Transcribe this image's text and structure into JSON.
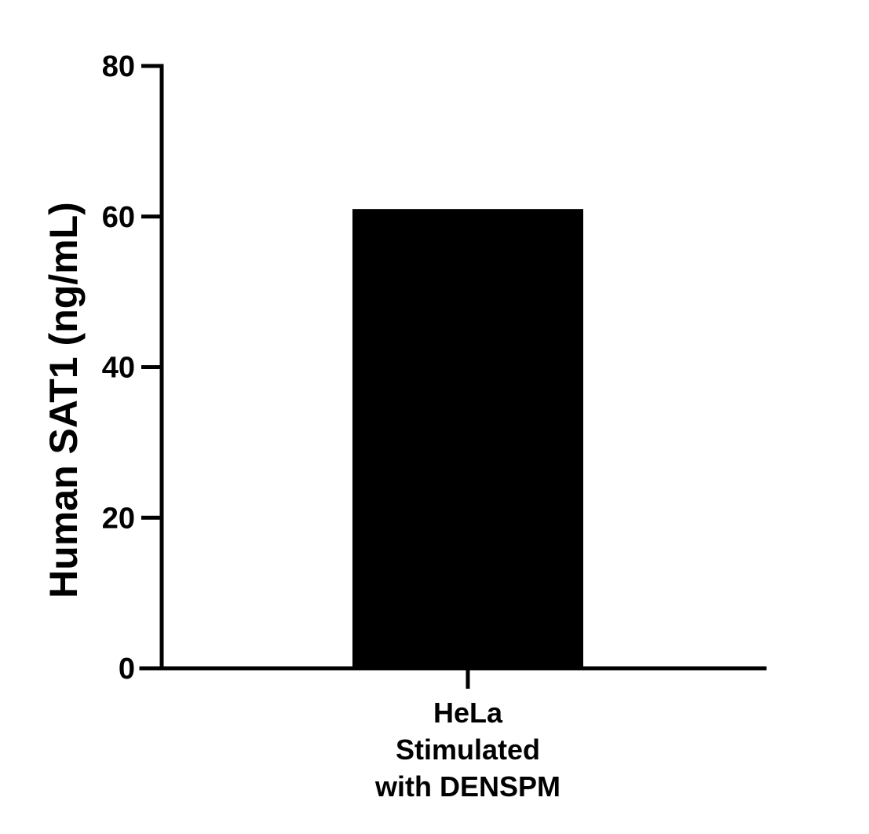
{
  "chart_data": {
    "type": "bar",
    "categories": [
      [
        "HeLa",
        "Stimulated",
        "with DENSPM"
      ]
    ],
    "values": [
      61
    ],
    "title": "",
    "xlabel": "",
    "ylabel": "Human SAT1 (ng/mL)",
    "ylim": [
      0,
      80
    ],
    "yticks": [
      0,
      20,
      40,
      60,
      80
    ],
    "ytick_labels": [
      "0",
      "20",
      "40",
      "60",
      "80"
    ],
    "bar_color": "#000000",
    "grid": false,
    "legend": "none"
  }
}
